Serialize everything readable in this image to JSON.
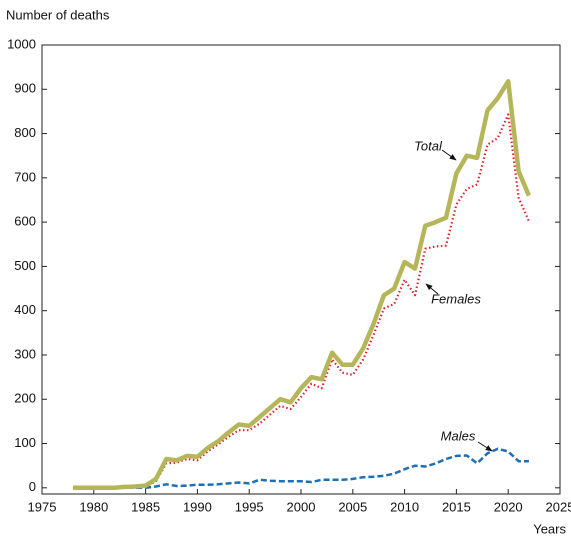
{
  "chart_data": {
    "type": "line",
    "y_label": "Number of deaths",
    "x_label": "Years",
    "x": [
      1978,
      1979,
      1980,
      1981,
      1982,
      1983,
      1984,
      1985,
      1986,
      1987,
      1988,
      1989,
      1990,
      1991,
      1992,
      1993,
      1994,
      1995,
      1996,
      1997,
      1998,
      1999,
      2000,
      2001,
      2002,
      2003,
      2004,
      2005,
      2006,
      2007,
      2008,
      2009,
      2010,
      2011,
      2012,
      2013,
      2014,
      2015,
      2016,
      2017,
      2018,
      2019,
      2020,
      2021,
      2022
    ],
    "series": [
      {
        "name": "Total",
        "color": "#b5b65a",
        "style": "solid",
        "values": [
          0,
          0,
          0,
          0,
          0,
          2,
          3,
          5,
          20,
          65,
          62,
          72,
          70,
          90,
          105,
          125,
          143,
          140,
          160,
          180,
          200,
          193,
          225,
          250,
          245,
          305,
          278,
          278,
          315,
          370,
          435,
          450,
          510,
          495,
          592,
          600,
          610,
          710,
          750,
          745,
          852,
          880,
          918,
          715,
          660
        ]
      },
      {
        "name": "Females",
        "color": "#e0242a",
        "style": "dotted",
        "values": [
          0,
          0,
          0,
          0,
          0,
          1,
          2,
          3,
          15,
          55,
          57,
          65,
          62,
          82,
          98,
          115,
          130,
          130,
          145,
          165,
          185,
          178,
          205,
          235,
          225,
          290,
          260,
          255,
          290,
          345,
          405,
          415,
          470,
          435,
          540,
          545,
          547,
          640,
          675,
          685,
          775,
          790,
          843,
          655,
          602
        ]
      },
      {
        "name": "Males",
        "color": "#1f6fb5",
        "style": "dashed",
        "values": [
          0,
          0,
          0,
          0,
          0,
          0,
          0,
          0,
          3,
          8,
          4,
          5,
          7,
          7,
          8,
          10,
          12,
          10,
          18,
          16,
          15,
          15,
          15,
          13,
          18,
          18,
          18,
          20,
          24,
          25,
          27,
          32,
          42,
          50,
          48,
          55,
          65,
          72,
          73,
          55,
          78,
          88,
          82,
          60,
          60
        ]
      }
    ],
    "xlim": [
      1975,
      2025
    ],
    "xticks": [
      1975,
      1980,
      1985,
      1990,
      1995,
      2000,
      2005,
      2010,
      2015,
      2020,
      2025
    ],
    "ylim": [
      -14,
      1000
    ],
    "yticks": [
      0,
      100,
      200,
      300,
      400,
      500,
      600,
      700,
      800,
      900,
      1000
    ],
    "grid": false
  }
}
